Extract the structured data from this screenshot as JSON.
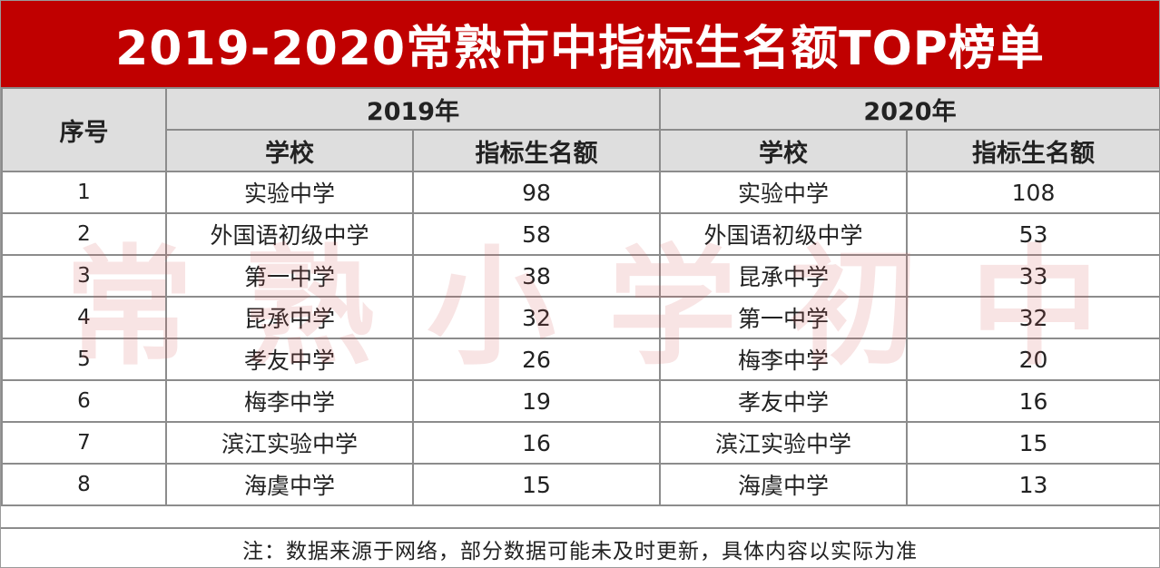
{
  "title": "2019-2020常熟市中指标生名额TOP榜单",
  "header": {
    "rank_label": "序号",
    "year_2019": "2019年",
    "year_2020": "2020年",
    "school_label_2019": "学校",
    "quota_label_2019": "指标生名额",
    "school_label_2020": "学校",
    "quota_label_2020": "指标生名额"
  },
  "rows": [
    {
      "rank": "1",
      "school_2019": "实验中学",
      "quota_2019": "98",
      "school_2020": "实验中学",
      "quota_2020": "108"
    },
    {
      "rank": "2",
      "school_2019": "外国语初级中学",
      "quota_2019": "58",
      "school_2020": "外国语初级中学",
      "quota_2020": "53"
    },
    {
      "rank": "3",
      "school_2019": "第一中学",
      "quota_2019": "38",
      "school_2020": "昆承中学",
      "quota_2020": "33"
    },
    {
      "rank": "4",
      "school_2019": "昆承中学",
      "quota_2019": "32",
      "school_2020": "第一中学",
      "quota_2020": "32"
    },
    {
      "rank": "5",
      "school_2019": "孝友中学",
      "quota_2019": "26",
      "school_2020": "梅李中学",
      "quota_2020": "20"
    },
    {
      "rank": "6",
      "school_2019": "梅李中学",
      "quota_2019": "19",
      "school_2020": "孝友中学",
      "quota_2020": "16"
    },
    {
      "rank": "7",
      "school_2019": "滨江实验中学",
      "quota_2019": "16",
      "school_2020": "滨江实验中学",
      "quota_2020": "15"
    },
    {
      "rank": "8",
      "school_2019": "海虞中学",
      "quota_2019": "15",
      "school_2020": "海虞中学",
      "quota_2020": "13"
    }
  ],
  "note": "注：数据来源于网络，部分数据可能未及时更新，具体内容以实际为准",
  "watermark": [
    "常",
    "熟",
    "小",
    "学",
    "初",
    "中"
  ],
  "colors": {
    "title_bg": "#c00000",
    "title_text": "#ffffff",
    "header_bg": "#dedede",
    "border": "#8c8c8c",
    "watermark": "#d65a5a"
  }
}
